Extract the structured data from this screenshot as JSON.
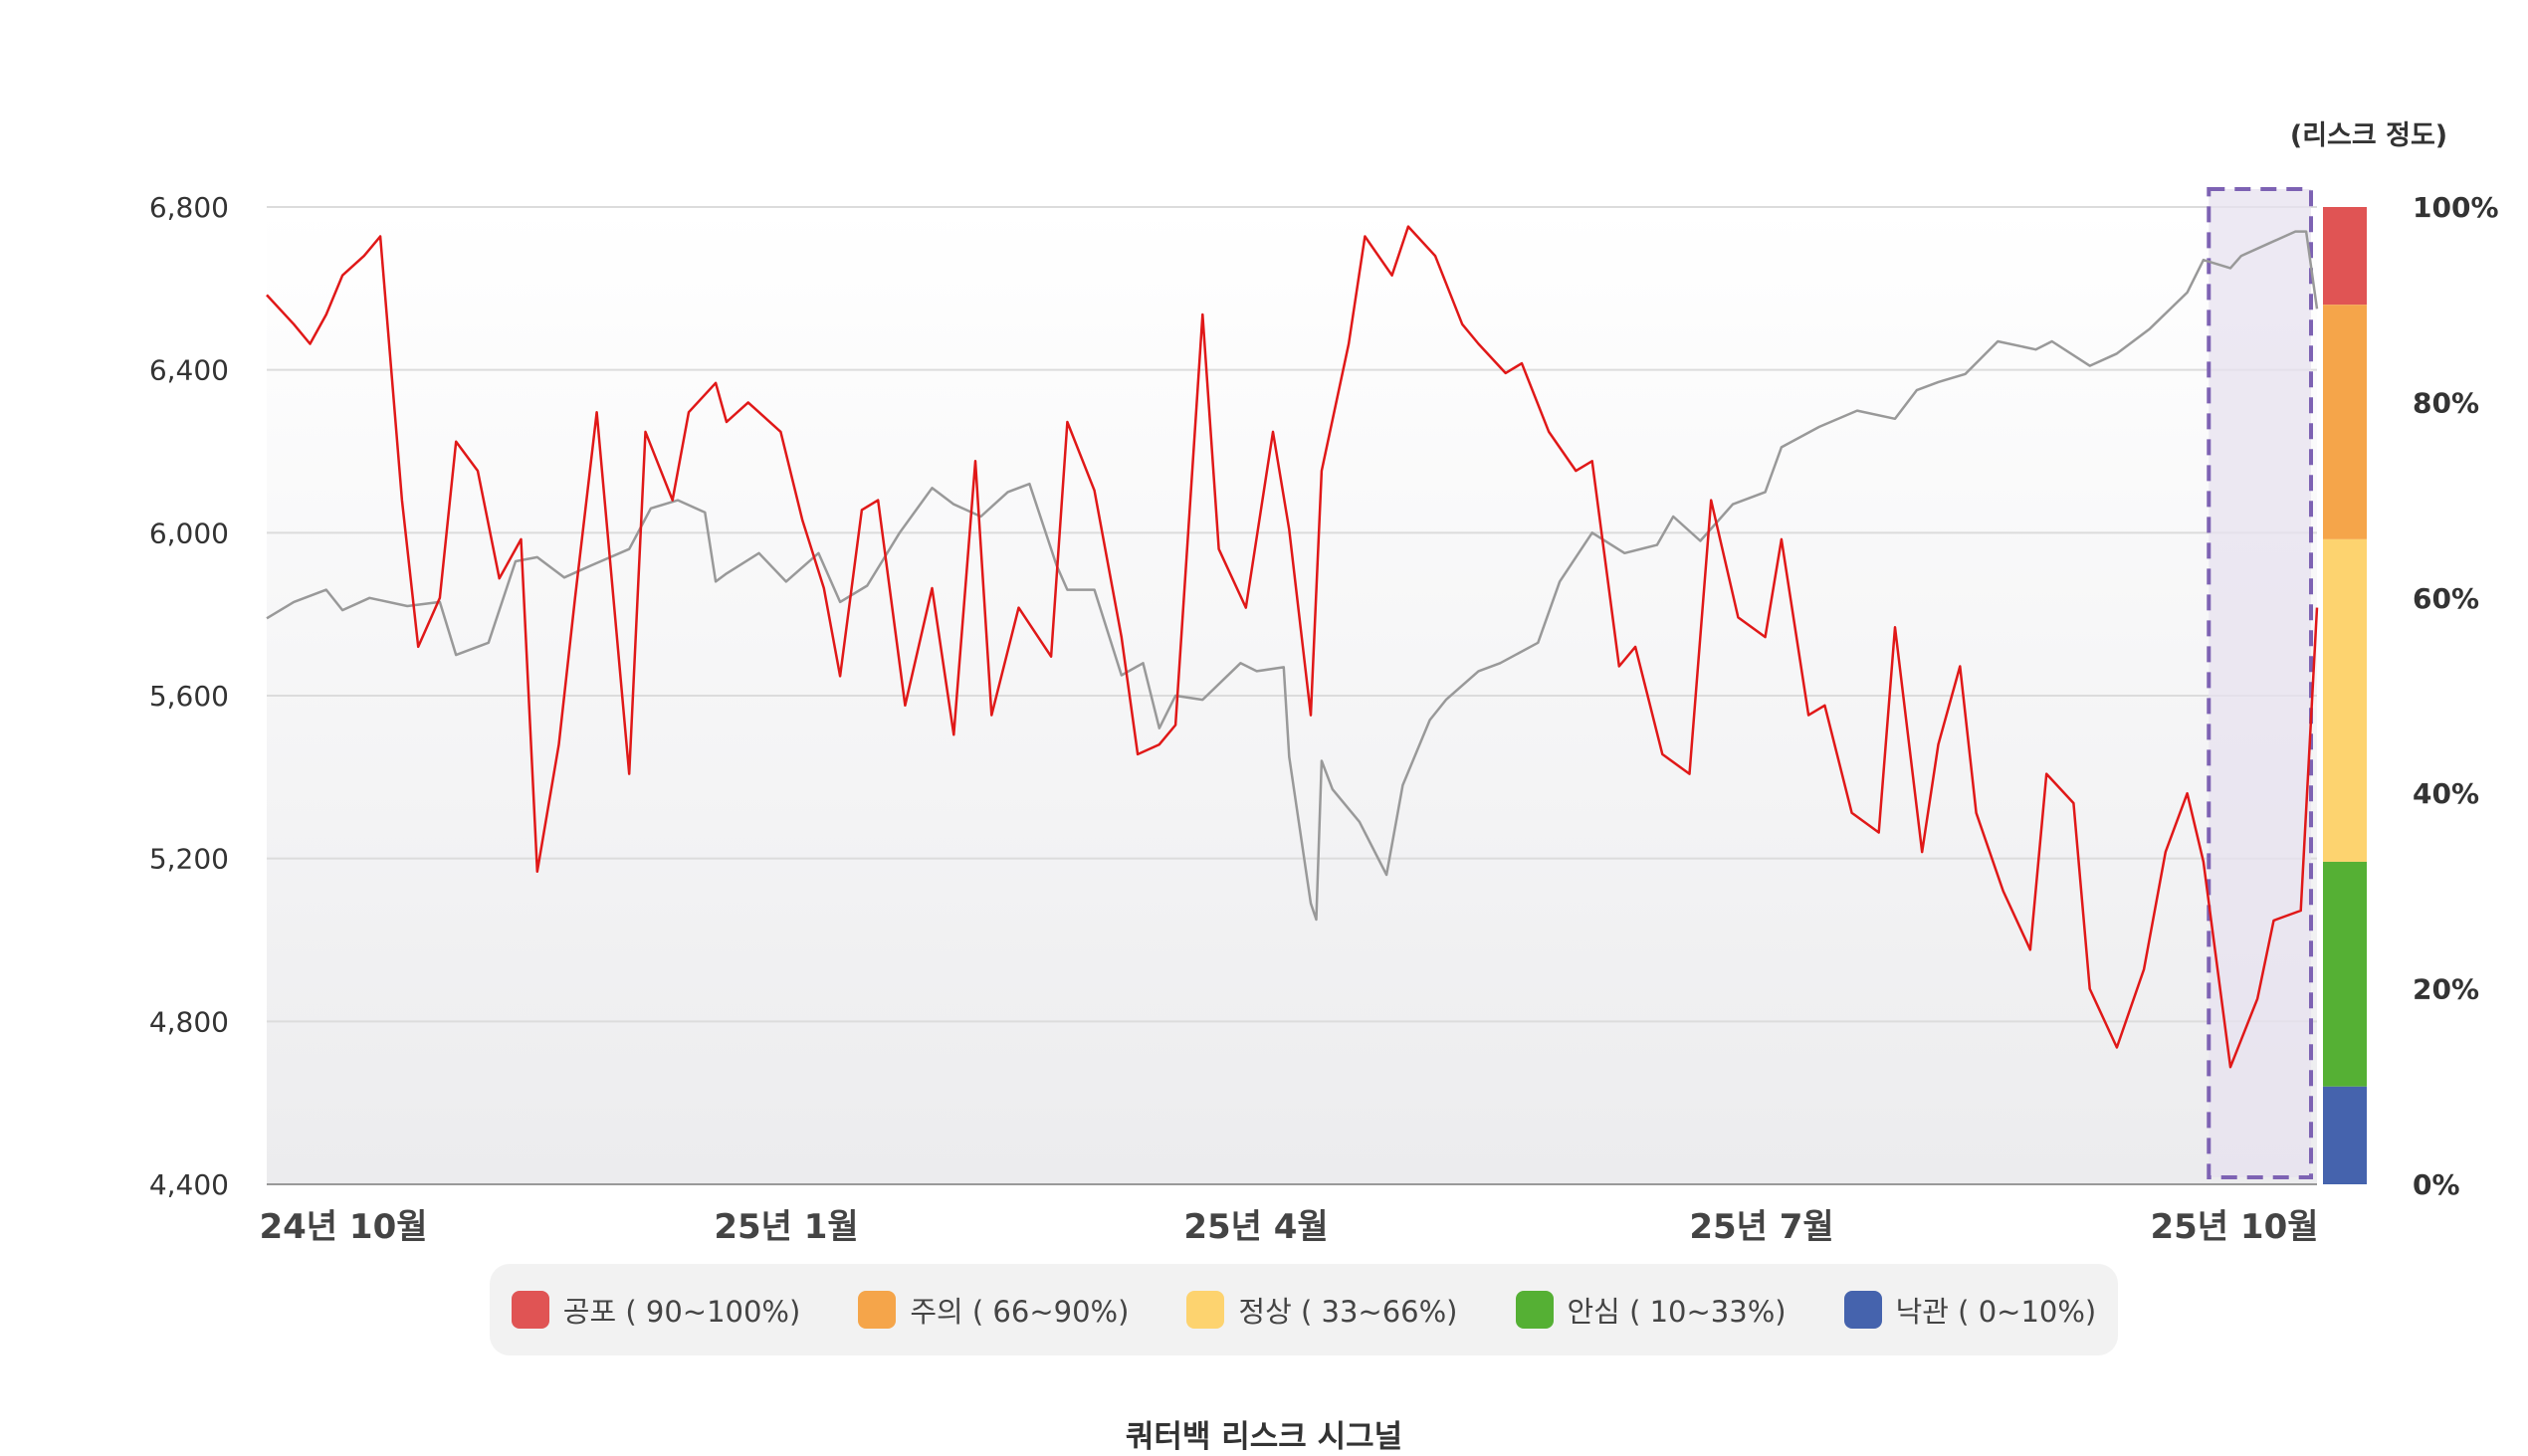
{
  "chart_data": {
    "type": "line",
    "y_axis": {
      "ticks": [
        "6,800",
        "6,400",
        "6,000",
        "5,600",
        "5,200",
        "4,800",
        "4,400"
      ],
      "tick_values": [
        6800,
        6400,
        6000,
        5600,
        5200,
        4800,
        4400
      ],
      "ylim": [
        4400,
        6800
      ]
    },
    "x_axis": {
      "tick_labels": [
        "24년 10월",
        "25년 1월",
        "25년 4월",
        "25년 7월",
        "25년 10월"
      ],
      "xlim": [
        "2024-09-26",
        "2025-10-10"
      ]
    },
    "risk_axis": {
      "title": "(리스크 정도)",
      "ticks": [
        "100%",
        "80%",
        "60%",
        "40%",
        "20%",
        "0%"
      ]
    },
    "risk_bands": [
      {
        "label": "공포 ( 90~100%)",
        "min": 90,
        "max": 100,
        "color": "#e05454"
      },
      {
        "label": "주의 ( 66~90%)",
        "min": 66,
        "max": 90,
        "color": "#f5a54a"
      },
      {
        "label": "정상 ( 33~66%)",
        "min": 33,
        "max": 66,
        "color": "#fdd36f"
      },
      {
        "label": "안심 ( 10~33%)",
        "min": 10,
        "max": 33,
        "color": "#55b034"
      },
      {
        "label": "낙관 ( 0~10%)",
        "min": 0,
        "max": 10,
        "color": "#4563ad"
      }
    ],
    "highlight_region": [
      "2025-09-20",
      "2025-10-10"
    ],
    "grid": true,
    "series": [
      {
        "color": "#999999",
        "x": [
          "2024-09-26",
          "2024-10-01",
          "2024-10-07",
          "2024-10-10",
          "2024-10-15",
          "2024-10-22",
          "2024-10-28",
          "2024-10-31",
          "2024-11-06",
          "2024-11-11",
          "2024-11-15",
          "2024-11-20",
          "2024-11-25",
          "2024-12-02",
          "2024-12-06",
          "2024-12-11",
          "2024-12-16",
          "2024-12-18",
          "2024-12-20",
          "2024-12-26",
          "2024-12-31",
          "2025-01-06",
          "2025-01-10",
          "2025-01-15",
          "2025-01-21",
          "2025-01-27",
          "2025-01-31",
          "2025-02-05",
          "2025-02-10",
          "2025-02-14",
          "2025-02-19",
          "2025-02-21",
          "2025-02-26",
          "2025-03-03",
          "2025-03-07",
          "2025-03-10",
          "2025-03-13",
          "2025-03-18",
          "2025-03-25",
          "2025-03-28",
          "2025-04-02",
          "2025-04-03",
          "2025-04-07",
          "2025-04-08",
          "2025-04-09",
          "2025-04-11",
          "2025-04-16",
          "2025-04-21",
          "2025-04-24",
          "2025-04-29",
          "2025-05-02",
          "2025-05-08",
          "2025-05-12",
          "2025-05-19",
          "2025-05-23",
          "2025-05-29",
          "2025-06-04",
          "2025-06-10",
          "2025-06-13",
          "2025-06-18",
          "2025-06-24",
          "2025-06-30",
          "2025-07-03",
          "2025-07-10",
          "2025-07-17",
          "2025-07-24",
          "2025-07-28",
          "2025-08-01",
          "2025-08-06",
          "2025-08-12",
          "2025-08-19",
          "2025-08-22",
          "2025-08-29",
          "2025-09-03",
          "2025-09-09",
          "2025-09-16",
          "2025-09-19",
          "2025-09-24",
          "2025-09-26",
          "2025-10-01",
          "2025-10-06",
          "2025-10-08",
          "2025-10-10"
        ],
        "values": [
          5790,
          5830,
          5860,
          5810,
          5840,
          5820,
          5830,
          5700,
          5730,
          5930,
          5940,
          5890,
          5920,
          5960,
          6060,
          6080,
          6050,
          5880,
          5900,
          5950,
          5880,
          5950,
          5830,
          5870,
          6000,
          6110,
          6070,
          6040,
          6100,
          6120,
          5920,
          5860,
          5860,
          5650,
          5680,
          5520,
          5600,
          5590,
          5680,
          5660,
          5670,
          5450,
          5090,
          5050,
          5440,
          5370,
          5290,
          5160,
          5380,
          5540,
          5590,
          5660,
          5680,
          5730,
          5880,
          6000,
          5950,
          5970,
          6040,
          5980,
          6070,
          6100,
          6210,
          6260,
          6300,
          6280,
          6350,
          6370,
          6390,
          6470,
          6450,
          6470,
          6410,
          6440,
          6500,
          6590,
          6670,
          6650,
          6680,
          6710,
          6740,
          6740,
          6550
        ]
      },
      {
        "color": "#e01818",
        "x": [
          "2024-09-26",
          "2024-10-01",
          "2024-10-04",
          "2024-10-07",
          "2024-10-10",
          "2024-10-14",
          "2024-10-17",
          "2024-10-21",
          "2024-10-24",
          "2024-10-28",
          "2024-10-31",
          "2024-11-04",
          "2024-11-08",
          "2024-11-12",
          "2024-11-15",
          "2024-11-19",
          "2024-11-22",
          "2024-11-26",
          "2024-12-02",
          "2024-12-05",
          "2024-12-10",
          "2024-12-13",
          "2024-12-18",
          "2024-12-20",
          "2024-12-24",
          "2024-12-30",
          "2025-01-03",
          "2025-01-07",
          "2025-01-10",
          "2025-01-14",
          "2025-01-17",
          "2025-01-22",
          "2025-01-27",
          "2025-01-31",
          "2025-02-04",
          "2025-02-07",
          "2025-02-12",
          "2025-02-18",
          "2025-02-21",
          "2025-02-26",
          "2025-03-03",
          "2025-03-06",
          "2025-03-10",
          "2025-03-13",
          "2025-03-18",
          "2025-03-21",
          "2025-03-26",
          "2025-03-31",
          "2025-04-03",
          "2025-04-07",
          "2025-04-09",
          "2025-04-14",
          "2025-04-17",
          "2025-04-22",
          "2025-04-25",
          "2025-04-30",
          "2025-05-05",
          "2025-05-08",
          "2025-05-13",
          "2025-05-16",
          "2025-05-21",
          "2025-05-26",
          "2025-05-29",
          "2025-06-03",
          "2025-06-06",
          "2025-06-11",
          "2025-06-16",
          "2025-06-20",
          "2025-06-25",
          "2025-06-30",
          "2025-07-03",
          "2025-07-08",
          "2025-07-11",
          "2025-07-16",
          "2025-07-21",
          "2025-07-24",
          "2025-07-29",
          "2025-08-01",
          "2025-08-05",
          "2025-08-08",
          "2025-08-13",
          "2025-08-18",
          "2025-08-21",
          "2025-08-26",
          "2025-08-29",
          "2025-09-03",
          "2025-09-08",
          "2025-09-12",
          "2025-09-16",
          "2025-09-19",
          "2025-09-24",
          "2025-09-29",
          "2025-10-02",
          "2025-10-07",
          "2025-10-10"
        ],
        "values": [
          91,
          88,
          86,
          89,
          93,
          95,
          97,
          70,
          55,
          60,
          76,
          73,
          62,
          66,
          32,
          45,
          60,
          79,
          42,
          77,
          70,
          79,
          82,
          78,
          80,
          77,
          68,
          61,
          52,
          69,
          70,
          49,
          61,
          46,
          74,
          48,
          59,
          54,
          78,
          71,
          56,
          44,
          45,
          47,
          89,
          65,
          59,
          77,
          67,
          48,
          73,
          86,
          97,
          93,
          98,
          95,
          88,
          86,
          83,
          84,
          77,
          73,
          74,
          53,
          55,
          44,
          42,
          70,
          58,
          56,
          66,
          48,
          49,
          38,
          36,
          57,
          34,
          45,
          53,
          38,
          30,
          24,
          42,
          39,
          20,
          14,
          22,
          34,
          40,
          33,
          12,
          19,
          27,
          28,
          59
        ]
      }
    ]
  },
  "caption": "쿼터백 리스크 시그널"
}
